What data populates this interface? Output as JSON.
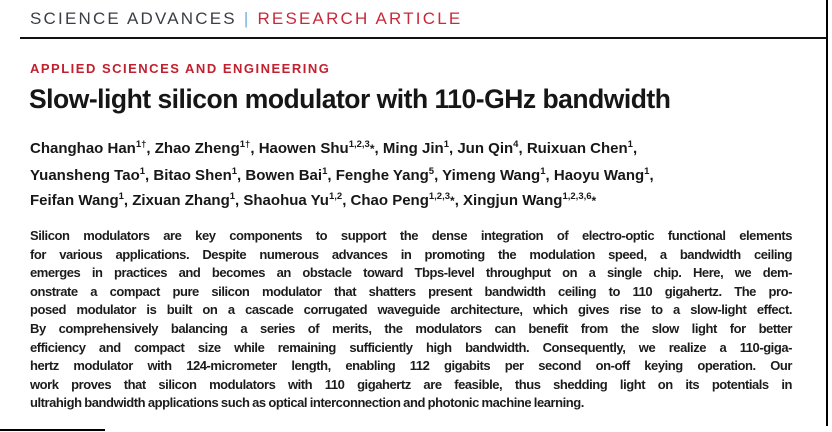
{
  "masthead": {
    "journal": "SCIENCE ADVANCES",
    "separator": "|",
    "article_type": "RESEARCH ARTICLE"
  },
  "article": {
    "section": "APPLIED SCIENCES AND ENGINEERING",
    "title": "Slow-light silicon modulator with 110-GHz bandwidth"
  },
  "authors": {
    "lines": [
      [
        {
          "name": "Changhao Han",
          "sup": "1†",
          "star": false
        },
        {
          "name": "Zhao Zheng",
          "sup": "1†",
          "star": false
        },
        {
          "name": "Haowen Shu",
          "sup": "1,2,3",
          "star": true
        },
        {
          "name": "Ming Jin",
          "sup": "1",
          "star": false
        },
        {
          "name": "Jun Qin",
          "sup": "4",
          "star": false
        },
        {
          "name": "Ruixuan Chen",
          "sup": "1",
          "star": false
        }
      ],
      [
        {
          "name": "Yuansheng Tao",
          "sup": "1",
          "star": false
        },
        {
          "name": "Bitao Shen",
          "sup": "1",
          "star": false
        },
        {
          "name": "Bowen Bai",
          "sup": "1",
          "star": false
        },
        {
          "name": "Fenghe Yang",
          "sup": "5",
          "star": false
        },
        {
          "name": "Yimeng Wang",
          "sup": "1",
          "star": false
        },
        {
          "name": "Haoyu Wang",
          "sup": "1",
          "star": false
        }
      ],
      [
        {
          "name": "Feifan Wang",
          "sup": "1",
          "star": false
        },
        {
          "name": "Zixuan Zhang",
          "sup": "1",
          "star": false
        },
        {
          "name": "Shaohua Yu",
          "sup": "1,2",
          "star": false
        },
        {
          "name": "Chao Peng",
          "sup": "1,2,3",
          "star": true
        },
        {
          "name": "Xingjun Wang",
          "sup": "1,2,3,6",
          "star": true
        }
      ]
    ]
  },
  "abstract": {
    "lines": [
      "Silicon modulators are key components to support the dense integration of electro-optic functional elements",
      "for various applications. Despite numerous advances in promoting the modulation speed, a bandwidth ceiling",
      "emerges in practices and becomes an obstacle toward Tbps-level throughput on a single chip. Here, we dem-",
      "onstrate a compact pure silicon modulator that shatters present bandwidth ceiling to 110 gigahertz. The pro-",
      "posed modulator is built on a cascade corrugated waveguide architecture, which gives rise to a slow-light effect.",
      "By comprehensively balancing a series of merits, the modulators can benefit from the slow light for better",
      "efficiency and compact size while remaining sufficiently high bandwidth. Consequently, we realize a 110-giga-",
      "hertz modulator with 124-micrometer length, enabling 112 gigabits per second on-off keying operation. Our",
      "work proves that silicon modulators with 110 gigahertz are feasible, thus shedding light on its potentials in",
      "ultrahigh bandwidth applications such as optical interconnection and photonic machine learning."
    ]
  },
  "colors": {
    "brand_red": "#c1202f",
    "masthead_red": "#c9293a",
    "separator_blue": "#6fb1dd",
    "masthead_dark": "#3a3e45",
    "text_dark": "#1a1a1a",
    "rule_black": "#111111"
  }
}
